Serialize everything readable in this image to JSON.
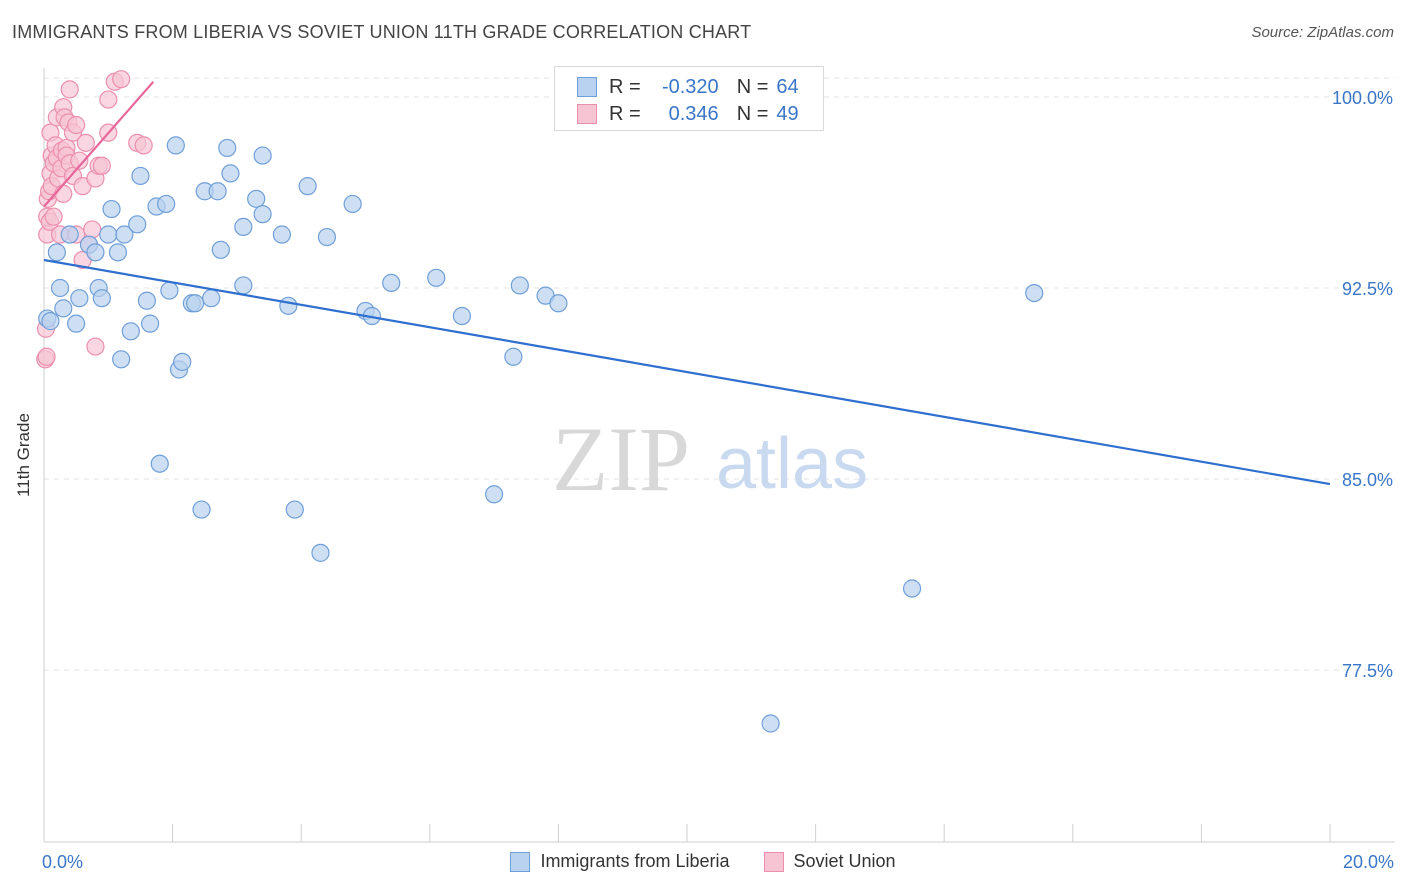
{
  "header": {
    "title": "IMMIGRANTS FROM LIBERIA VS SOVIET UNION 11TH GRADE CORRELATION CHART",
    "source": "Source: ZipAtlas.com"
  },
  "watermark": {
    "zip": "ZIP",
    "atlas": "atlas"
  },
  "legend_top": {
    "rows": [
      {
        "r_label": "R =",
        "r_value": "-0.320",
        "n_label": "N =",
        "n_value": "64"
      },
      {
        "r_label": "R =",
        "r_value": "0.346",
        "n_label": "N =",
        "n_value": "49"
      }
    ]
  },
  "legend_bottom": {
    "items": [
      {
        "label": "Immigrants from Liberia"
      },
      {
        "label": "Soviet Union"
      }
    ]
  },
  "colors": {
    "blue_fill": "#b9d2f0",
    "blue_stroke": "#6f9fd8",
    "blue_line": "#2f6fd0",
    "pink_fill": "#f7c4d4",
    "pink_stroke": "#ec8fae",
    "pink_line": "#e8679a",
    "grid": "#e3e3e3",
    "tick_text": "#3a76c8"
  },
  "chart_data": {
    "type": "scatter",
    "title": "IMMIGRANTS FROM LIBERIA VS SOVIET UNION 11TH GRADE CORRELATION CHART",
    "xlabel": "",
    "ylabel": "11th Grade",
    "xlim": [
      0,
      20
    ],
    "ylim": [
      70.5,
      101.5
    ],
    "x_tick_labels": [
      "0.0%",
      "20.0%"
    ],
    "y_ticks": [
      {
        "value": 100.0,
        "label": "100.0%"
      },
      {
        "value": 92.5,
        "label": "92.5%"
      },
      {
        "value": 85.0,
        "label": "85.0%"
      },
      {
        "value": 77.5,
        "label": "77.5%"
      }
    ],
    "grid": true,
    "series": [
      {
        "name": "Immigrants from Liberia",
        "color": "#6f9fd8",
        "trend": {
          "x": [
            0.0,
            20.0
          ],
          "y": [
            93.6,
            84.8
          ]
        },
        "points": [
          [
            0.05,
            91.3
          ],
          [
            0.1,
            91.2
          ],
          [
            0.2,
            93.9
          ],
          [
            0.25,
            92.5
          ],
          [
            0.3,
            91.7
          ],
          [
            0.4,
            94.6
          ],
          [
            0.5,
            91.1
          ],
          [
            0.55,
            92.1
          ],
          [
            0.7,
            94.2
          ],
          [
            0.8,
            93.9
          ],
          [
            0.85,
            92.5
          ],
          [
            0.9,
            92.1
          ],
          [
            1.0,
            94.6
          ],
          [
            1.05,
            95.6
          ],
          [
            1.15,
            93.9
          ],
          [
            1.2,
            89.7
          ],
          [
            1.25,
            94.6
          ],
          [
            1.35,
            90.8
          ],
          [
            1.45,
            95.0
          ],
          [
            1.5,
            96.9
          ],
          [
            1.6,
            92.0
          ],
          [
            1.65,
            91.1
          ],
          [
            1.75,
            95.7
          ],
          [
            1.8,
            85.6
          ],
          [
            1.9,
            95.8
          ],
          [
            1.95,
            92.4
          ],
          [
            2.05,
            98.1
          ],
          [
            2.1,
            89.3
          ],
          [
            2.15,
            89.6
          ],
          [
            2.3,
            91.9
          ],
          [
            2.35,
            91.9
          ],
          [
            2.45,
            83.8
          ],
          [
            2.5,
            96.3
          ],
          [
            2.6,
            92.1
          ],
          [
            2.7,
            96.3
          ],
          [
            2.75,
            94.0
          ],
          [
            2.85,
            98.0
          ],
          [
            2.9,
            97.0
          ],
          [
            3.1,
            94.9
          ],
          [
            3.1,
            92.6
          ],
          [
            3.3,
            96.0
          ],
          [
            3.4,
            95.4
          ],
          [
            3.4,
            97.7
          ],
          [
            3.7,
            94.6
          ],
          [
            3.8,
            91.8
          ],
          [
            3.9,
            83.8
          ],
          [
            4.1,
            96.5
          ],
          [
            4.3,
            82.1
          ],
          [
            4.4,
            94.5
          ],
          [
            4.8,
            95.8
          ],
          [
            5.0,
            91.6
          ],
          [
            5.1,
            91.4
          ],
          [
            5.4,
            92.7
          ],
          [
            6.1,
            92.9
          ],
          [
            6.5,
            91.4
          ],
          [
            7.0,
            84.4
          ],
          [
            7.3,
            89.8
          ],
          [
            7.4,
            92.6
          ],
          [
            7.8,
            92.2
          ],
          [
            8.0,
            91.9
          ],
          [
            9.4,
            100.6
          ],
          [
            13.5,
            80.7
          ],
          [
            15.4,
            92.3
          ],
          [
            11.3,
            75.4
          ]
        ]
      },
      {
        "name": "Soviet Union",
        "color": "#ec8fae",
        "trend": {
          "x": [
            0.0,
            1.7
          ],
          "y": [
            95.7,
            100.6
          ]
        },
        "points": [
          [
            0.02,
            89.7
          ],
          [
            0.03,
            90.9
          ],
          [
            0.04,
            89.8
          ],
          [
            0.05,
            94.6
          ],
          [
            0.05,
            95.3
          ],
          [
            0.06,
            96.0
          ],
          [
            0.08,
            96.3
          ],
          [
            0.09,
            95.1
          ],
          [
            0.1,
            97.0
          ],
          [
            0.1,
            98.6
          ],
          [
            0.12,
            97.7
          ],
          [
            0.12,
            96.5
          ],
          [
            0.15,
            97.4
          ],
          [
            0.15,
            95.3
          ],
          [
            0.18,
            98.1
          ],
          [
            0.2,
            97.6
          ],
          [
            0.2,
            99.2
          ],
          [
            0.22,
            96.8
          ],
          [
            0.25,
            94.6
          ],
          [
            0.27,
            97.2
          ],
          [
            0.28,
            97.9
          ],
          [
            0.3,
            96.2
          ],
          [
            0.3,
            99.6
          ],
          [
            0.32,
            99.2
          ],
          [
            0.35,
            98.0
          ],
          [
            0.35,
            97.7
          ],
          [
            0.38,
            99.0
          ],
          [
            0.4,
            97.4
          ],
          [
            0.4,
            100.3
          ],
          [
            0.45,
            96.9
          ],
          [
            0.45,
            98.6
          ],
          [
            0.5,
            94.6
          ],
          [
            0.5,
            98.9
          ],
          [
            0.55,
            97.5
          ],
          [
            0.6,
            96.5
          ],
          [
            0.6,
            93.6
          ],
          [
            0.65,
            98.2
          ],
          [
            0.7,
            94.2
          ],
          [
            0.75,
            94.8
          ],
          [
            0.8,
            90.2
          ],
          [
            0.8,
            96.8
          ],
          [
            0.85,
            97.3
          ],
          [
            0.9,
            97.3
          ],
          [
            1.0,
            98.6
          ],
          [
            1.0,
            99.9
          ],
          [
            1.1,
            100.6
          ],
          [
            1.2,
            100.7
          ],
          [
            1.45,
            98.2
          ],
          [
            1.55,
            98.1
          ]
        ]
      }
    ]
  }
}
